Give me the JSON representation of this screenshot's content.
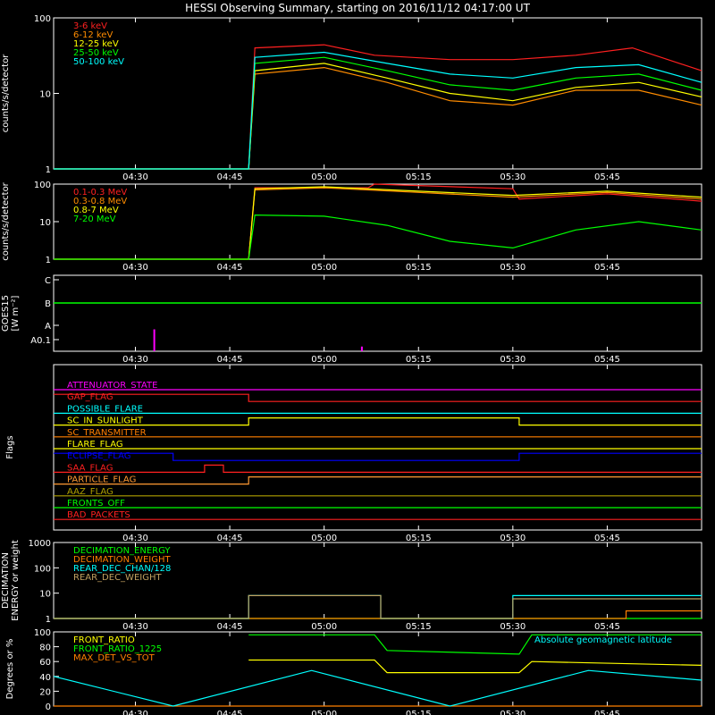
{
  "title": "HESSI Observing Summary, starting on 2016/11/12 04:17:00 UT",
  "colors": {
    "axis": "#ffffff",
    "red": "#ff2020",
    "orange": "#ff8c00",
    "yellow": "#ffff00",
    "green": "#00ff00",
    "cyan": "#00ffff",
    "magenta": "#ff00ff",
    "blue": "#0000ff",
    "olive": "#b0a000",
    "tan": "#c0a060",
    "brightorange": "#ff8000",
    "sunorange": "#ff7f00",
    "lightorange": "#ff9933"
  },
  "x_axis": {
    "start_time": "04:17",
    "end_time": "06:00",
    "ticks": [
      "04:30",
      "04:45",
      "05:00",
      "05:15",
      "05:30",
      "05:45"
    ],
    "tick_minutes": [
      30,
      45,
      60,
      75,
      90,
      105
    ]
  },
  "chart_data": [
    {
      "type": "line",
      "panel": "count-rates",
      "ylabel": "counts/s/detector",
      "scale": "log",
      "ylim": [
        1,
        100
      ],
      "yticks": [
        "1",
        "10",
        "100"
      ],
      "legend_placement": "top-left",
      "series": [
        {
          "name": "3-6 keV",
          "color": "red",
          "x": [
            "04:17",
            "04:48",
            "04:49",
            "05:00",
            "05:08",
            "05:20",
            "05:30",
            "05:40",
            "05:49",
            "06:00"
          ],
          "values": [
            1,
            1,
            40,
            44,
            32,
            28,
            28,
            32,
            40,
            20
          ]
        },
        {
          "name": "6-12 keV",
          "color": "orange",
          "x": [
            "04:17",
            "04:48",
            "04:49",
            "05:00",
            "05:10",
            "05:20",
            "05:30",
            "05:40",
            "05:50",
            "06:00"
          ],
          "values": [
            1,
            1,
            18,
            22,
            14,
            8,
            7,
            11,
            11,
            7
          ]
        },
        {
          "name": "12-25 keV",
          "color": "yellow",
          "x": [
            "04:17",
            "04:48",
            "04:49",
            "05:00",
            "05:10",
            "05:20",
            "05:30",
            "05:40",
            "05:50",
            "06:00"
          ],
          "values": [
            1,
            1,
            20,
            25,
            16,
            10,
            8,
            12,
            14,
            9
          ]
        },
        {
          "name": "25-50 keV",
          "color": "green",
          "x": [
            "04:17",
            "04:48",
            "04:49",
            "05:00",
            "05:10",
            "05:20",
            "05:30",
            "05:40",
            "05:50",
            "06:00"
          ],
          "values": [
            1,
            1,
            25,
            30,
            20,
            13,
            11,
            16,
            18,
            11
          ]
        },
        {
          "name": "50-100 keV",
          "color": "cyan",
          "x": [
            "04:17",
            "04:48",
            "04:49",
            "05:00",
            "05:10",
            "05:20",
            "05:30",
            "05:40",
            "05:50",
            "06:00"
          ],
          "values": [
            1,
            1,
            30,
            35,
            25,
            18,
            16,
            22,
            24,
            14
          ]
        }
      ]
    },
    {
      "type": "line",
      "panel": "high-energy",
      "ylabel": "counts/s/detector",
      "scale": "log",
      "ylim": [
        1,
        100
      ],
      "yticks": [
        "1",
        "10",
        "100"
      ],
      "legend_placement": "top-left",
      "series": [
        {
          "name": "0.1-0.3 MeV",
          "color": "red",
          "x": [
            "04:17",
            "04:48",
            "04:49",
            "05:07",
            "05:08",
            "05:30",
            "05:31",
            "05:45",
            "06:00"
          ],
          "values": [
            1,
            1,
            80,
            80,
            100,
            75,
            40,
            55,
            35
          ]
        },
        {
          "name": "0.3-0.8 MeV",
          "color": "orange",
          "x": [
            "04:17",
            "04:48",
            "04:49",
            "05:00",
            "05:15",
            "05:30",
            "05:45",
            "06:00"
          ],
          "values": [
            1,
            1,
            70,
            80,
            60,
            45,
            60,
            40
          ]
        },
        {
          "name": "0.8-7 MeV",
          "color": "yellow",
          "x": [
            "04:17",
            "04:48",
            "04:49",
            "05:00",
            "05:15",
            "05:30",
            "05:45",
            "06:00"
          ],
          "values": [
            1,
            1,
            75,
            85,
            65,
            50,
            65,
            45
          ]
        },
        {
          "name": "7-20 MeV",
          "color": "green",
          "x": [
            "04:17",
            "04:48",
            "04:49",
            "05:00",
            "05:10",
            "05:20",
            "05:30",
            "05:40",
            "05:50",
            "06:00"
          ],
          "values": [
            1,
            1,
            15,
            14,
            8,
            3,
            2,
            6,
            10,
            6
          ]
        }
      ]
    },
    {
      "type": "line",
      "panel": "goes",
      "ylabel": "GOES15",
      "ylabel_sub": "[W m⁻²]",
      "yticks": [
        "A0.1",
        "A",
        "B",
        "C"
      ],
      "series": [
        {
          "name": "GOES flux",
          "color": "green",
          "x": [
            "04:17",
            "06:00"
          ],
          "values": [
            1.8,
            1.8
          ]
        }
      ],
      "spikes": [
        {
          "x": "04:33",
          "height": 0.7,
          "color": "magenta"
        },
        {
          "x": "05:06",
          "height": 0.15,
          "color": "magenta"
        }
      ]
    },
    {
      "type": "line",
      "panel": "flags",
      "ylabel": "Flags",
      "flags": [
        {
          "name": "ATTENUATOR_STATE",
          "color": "magenta",
          "segments": [
            [
              "04:17",
              "06:00",
              0
            ]
          ]
        },
        {
          "name": "GAP_FLAG",
          "color": "red",
          "segments": [
            [
              "04:17",
              "04:48",
              1
            ],
            [
              "04:48",
              "06:00",
              0
            ]
          ]
        },
        {
          "name": "POSSIBLE_FLARE",
          "color": "cyan",
          "segments": [
            [
              "04:17",
              "06:00",
              0
            ]
          ]
        },
        {
          "name": "SC_IN_SUNLIGHT",
          "color": "yellow",
          "segments": [
            [
              "04:17",
              "04:48",
              0
            ],
            [
              "04:48",
              "05:31",
              1
            ],
            [
              "05:31",
              "06:00",
              0
            ]
          ]
        },
        {
          "name": "SC_TRANSMITTER",
          "color": "sunorange",
          "segments": [
            [
              "04:17",
              "06:00",
              0
            ]
          ]
        },
        {
          "name": "FLARE_FLAG",
          "color": "yellow",
          "segments": [
            [
              "04:17",
              "06:00",
              0
            ]
          ]
        },
        {
          "name": "ECLIPSE_FLAG",
          "color": "blue",
          "segments": [
            [
              "04:17",
              "04:36",
              1
            ],
            [
              "04:36",
              "05:31",
              0
            ],
            [
              "05:31",
              "06:00",
              1
            ]
          ]
        },
        {
          "name": "SAA_FLAG",
          "color": "red",
          "segments": [
            [
              "04:17",
              "04:41",
              0
            ],
            [
              "04:41",
              "04:44",
              1
            ],
            [
              "04:44",
              "06:00",
              0
            ]
          ]
        },
        {
          "name": "PARTICLE_FLAG",
          "color": "lightorange",
          "segments": [
            [
              "04:17",
              "04:48",
              0
            ],
            [
              "04:48",
              "06:00",
              1
            ]
          ]
        },
        {
          "name": "AAZ_FLAG",
          "color": "olive",
          "segments": [
            [
              "04:17",
              "06:00",
              0
            ]
          ]
        },
        {
          "name": "FRONTS_OFF",
          "color": "green",
          "segments": [
            [
              "04:17",
              "06:00",
              0
            ]
          ]
        },
        {
          "name": "BAD_PACKETS",
          "color": "red",
          "segments": [
            [
              "04:17",
              "06:00",
              0
            ]
          ]
        }
      ]
    },
    {
      "type": "line",
      "panel": "decimation",
      "ylabel": "DECIMATION",
      "ylabel2": "ENERGY or weight",
      "scale": "log",
      "ylim": [
        1,
        1000
      ],
      "yticks": [
        "1",
        "10",
        "100",
        "1000"
      ],
      "legend_placement": "top-left",
      "series": [
        {
          "name": "DECIMATION_ENERGY",
          "color": "green",
          "x": [
            "04:17",
            "06:00"
          ],
          "values": [
            1,
            1
          ]
        },
        {
          "name": "DECIMATION_WEIGHT",
          "color": "sunorange",
          "x": [
            "04:17",
            "05:48",
            "05:48",
            "06:00"
          ],
          "values": [
            1,
            1,
            2,
            2
          ]
        },
        {
          "name": "REAR_DEC_CHAN/128",
          "color": "cyan",
          "x": [
            "04:17",
            "04:48",
            "04:48",
            "05:09",
            "05:09",
            "05:30",
            "05:30",
            "06:00"
          ],
          "values": [
            1,
            1,
            8,
            8,
            1,
            1,
            8,
            8
          ]
        },
        {
          "name": "REAR_DEC_WEIGHT",
          "color": "tan",
          "x": [
            "04:17",
            "04:48",
            "04:48",
            "05:09",
            "05:09",
            "05:30",
            "05:30",
            "06:00"
          ],
          "values": [
            1,
            1,
            8,
            8,
            1,
            1,
            6,
            6
          ]
        }
      ]
    },
    {
      "type": "line",
      "panel": "ratios",
      "ylabel": "Degrees or %",
      "ylim": [
        0,
        100
      ],
      "yticks": [
        "0",
        "20",
        "40",
        "60",
        "80",
        "100"
      ],
      "legend_placement": "top-left",
      "annotation": "Absolute geomagnetic latitude",
      "series": [
        {
          "name": "FRONT_RATIO",
          "color": "yellow",
          "x": [
            "04:48",
            "05:08",
            "05:10",
            "05:31",
            "05:33",
            "06:00"
          ],
          "values": [
            62,
            62,
            45,
            45,
            60,
            55
          ]
        },
        {
          "name": "FRONT_RATIO_1225",
          "color": "green",
          "x": [
            "04:48",
            "05:08",
            "05:10",
            "05:31",
            "05:33",
            "06:00"
          ],
          "values": [
            96,
            96,
            75,
            70,
            96,
            96
          ]
        },
        {
          "name": "MAX_DET_VS_TOT",
          "color": "brightorange",
          "x": [
            "04:17",
            "06:00"
          ],
          "values": [
            0,
            0
          ]
        },
        {
          "name": "Absolute geomagnetic latitude",
          "color": "cyan",
          "x": [
            "04:17",
            "04:36",
            "04:58",
            "05:20",
            "05:42",
            "06:00"
          ],
          "values": [
            40,
            0,
            48,
            0,
            48,
            35
          ]
        }
      ]
    }
  ]
}
